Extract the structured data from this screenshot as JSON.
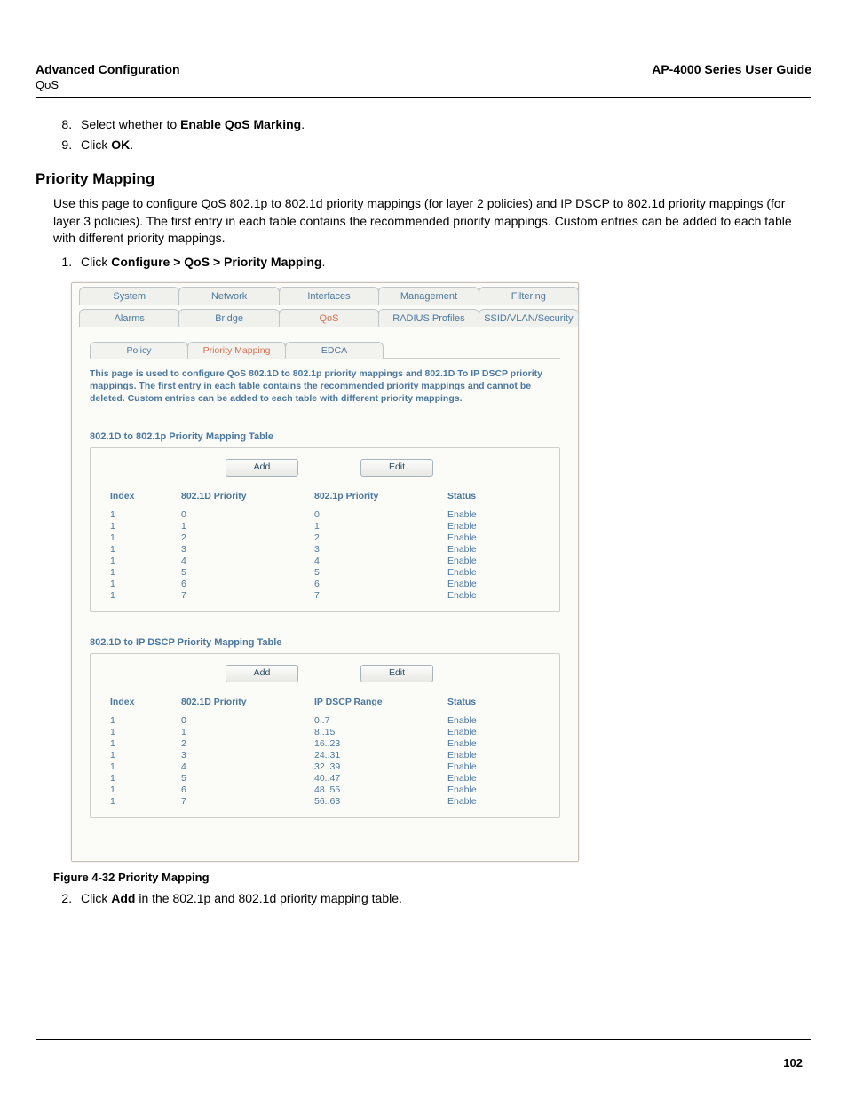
{
  "header": {
    "left_title": "Advanced Configuration",
    "left_sub": "QoS",
    "right_title": "AP-4000 Series User Guide"
  },
  "steps_top": [
    {
      "n": "8.",
      "pre": "Select whether to ",
      "bold": "Enable QoS Marking",
      "post": "."
    },
    {
      "n": "9.",
      "pre": "Click ",
      "bold": "OK",
      "post": "."
    }
  ],
  "section_title": "Priority Mapping",
  "intro": "Use this page to configure QoS 802.1p to 802.1d priority mappings (for layer 2 policies) and IP DSCP to 802.1d priority mappings (for layer 3 policies). The first entry in each table contains the recommended priority mappings. Custom entries can be added to each table with different priority mappings.",
  "step1": {
    "n": "1.",
    "pre": "Click ",
    "bold": "Configure > QoS > Priority Mapping",
    "post": "."
  },
  "figure_caption": "Figure 4-32 Priority Mapping",
  "step2": {
    "n": "2.",
    "pre": "Click ",
    "bold": "Add",
    "post": " in the 802.1p and 802.1d priority mapping table."
  },
  "page_number": "102",
  "shot": {
    "tabs_row1": [
      "System",
      "Network",
      "Interfaces",
      "Management",
      "Filtering"
    ],
    "tabs_row2": [
      "Alarms",
      "Bridge",
      "QoS",
      "RADIUS Profiles",
      "SSID/VLAN/Security"
    ],
    "tabs_row2_active": 2,
    "sub_tabs": [
      "Policy",
      "Priority Mapping",
      "EDCA"
    ],
    "sub_tabs_active": 1,
    "desc": "This page is used to configure QoS 802.1D to 802.1p priority mappings and 802.1D To IP DSCP priority mappings. The first entry in each table contains the recommended priority mappings and cannot be deleted. Custom entries can be added to each table with different priority mappings.",
    "btn_add": "Add",
    "btn_edit": "Edit",
    "table1": {
      "title": "802.1D to 802.1p Priority Mapping Table",
      "headers": [
        "Index",
        "802.1D Priority",
        "802.1p Priority",
        "Status"
      ],
      "rows": [
        [
          "1",
          "0",
          "0",
          "Enable"
        ],
        [
          "1",
          "1",
          "1",
          "Enable"
        ],
        [
          "1",
          "2",
          "2",
          "Enable"
        ],
        [
          "1",
          "3",
          "3",
          "Enable"
        ],
        [
          "1",
          "4",
          "4",
          "Enable"
        ],
        [
          "1",
          "5",
          "5",
          "Enable"
        ],
        [
          "1",
          "6",
          "6",
          "Enable"
        ],
        [
          "1",
          "7",
          "7",
          "Enable"
        ]
      ]
    },
    "table2": {
      "title": "802.1D to IP DSCP Priority Mapping Table",
      "headers": [
        "Index",
        "802.1D Priority",
        "IP DSCP Range",
        "Status"
      ],
      "rows": [
        [
          "1",
          "0",
          "0..7",
          "Enable"
        ],
        [
          "1",
          "1",
          "8..15",
          "Enable"
        ],
        [
          "1",
          "2",
          "16..23",
          "Enable"
        ],
        [
          "1",
          "3",
          "24..31",
          "Enable"
        ],
        [
          "1",
          "4",
          "32..39",
          "Enable"
        ],
        [
          "1",
          "5",
          "40..47",
          "Enable"
        ],
        [
          "1",
          "6",
          "48..55",
          "Enable"
        ],
        [
          "1",
          "7",
          "56..63",
          "Enable"
        ]
      ]
    }
  }
}
